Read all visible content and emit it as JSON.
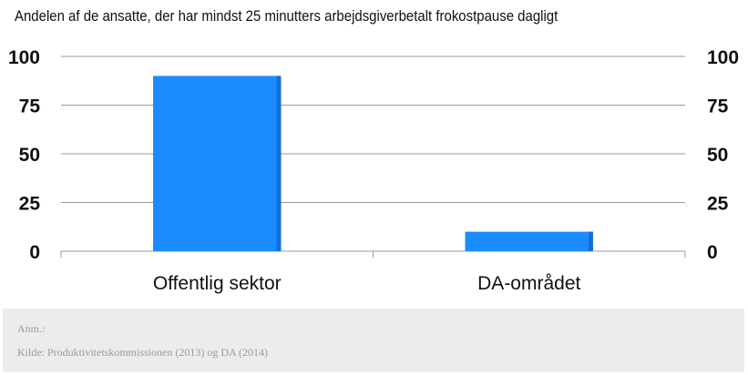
{
  "chart_data": {
    "type": "bar",
    "title": "Andelen af de ansatte, der har mindst 25 minutters arbejdsgiverbetalt frokostpause dagligt",
    "categories": [
      "Offentlig sektor",
      "DA-området"
    ],
    "values": [
      90,
      10
    ],
    "ylim": [
      0,
      100
    ],
    "yticks": [
      "100",
      "75",
      "50",
      "25",
      "0"
    ],
    "xlabel": "",
    "ylabel": "",
    "grid": true,
    "bar_color": "#1a8cff",
    "bar_shade_color": "#1470d0",
    "grid_color": "#999999"
  },
  "footer": {
    "note": "Anm.:",
    "source": "Kilde: Produktivitetskommissionen (2013) og DA (2014)"
  }
}
